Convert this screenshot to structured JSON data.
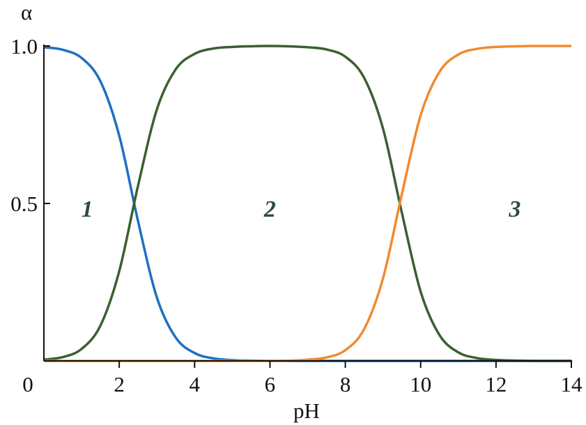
{
  "chart_data": {
    "type": "line",
    "title": "",
    "xlabel": "pH",
    "ylabel": "α",
    "xlim": [
      0,
      14
    ],
    "ylim": [
      0,
      1
    ],
    "grid": false,
    "x_ticks": [
      "0",
      "2",
      "4",
      "6",
      "8",
      "10",
      "12",
      "14"
    ],
    "x_tick_values": [
      0,
      2,
      4,
      6,
      8,
      10,
      12,
      14
    ],
    "y_ticks": [
      "0.5",
      "1.0"
    ],
    "y_tick_values": [
      0.5,
      1.0
    ],
    "x": [
      0,
      0.5,
      1,
      1.5,
      2,
      2.5,
      3,
      3.5,
      4,
      4.5,
      5,
      5.5,
      6,
      6.5,
      7,
      7.5,
      8,
      8.5,
      9,
      9.5,
      10,
      10.5,
      11,
      11.5,
      12,
      12.5,
      13,
      13.5,
      14
    ],
    "series": [
      {
        "label": "1",
        "color": "#1f6fc0",
        "values": [
          0.996,
          0.988,
          0.962,
          0.888,
          0.715,
          0.443,
          0.201,
          0.074,
          0.025,
          0.008,
          0.0025,
          0.001,
          0,
          0,
          0,
          0,
          0,
          0,
          0,
          0,
          0,
          0,
          0,
          0,
          0,
          0,
          0,
          0,
          0
        ]
      },
      {
        "label": "2",
        "color": "#3b5f30",
        "values": [
          0.004,
          0.012,
          0.038,
          0.112,
          0.285,
          0.557,
          0.799,
          0.926,
          0.975,
          0.992,
          0.997,
          0.999,
          1.0,
          0.999,
          0.996,
          0.989,
          0.966,
          0.899,
          0.738,
          0.471,
          0.22,
          0.082,
          0.027,
          0.009,
          0.003,
          0.001,
          0,
          0,
          0
        ]
      },
      {
        "label": "3",
        "color": "#f08a30",
        "values": [
          0,
          0,
          0,
          0,
          0,
          0,
          0,
          0,
          0,
          0,
          0,
          0,
          0,
          0.001,
          0.004,
          0.011,
          0.034,
          0.101,
          0.262,
          0.529,
          0.78,
          0.918,
          0.973,
          0.991,
          0.997,
          0.999,
          1.0,
          1.0,
          1.0
        ]
      }
    ],
    "annotations": [
      {
        "text": "1",
        "x": 1.15,
        "y": 0.48
      },
      {
        "text": "2",
        "x": 6.0,
        "y": 0.48
      },
      {
        "text": "3",
        "x": 12.5,
        "y": 0.48
      }
    ]
  }
}
